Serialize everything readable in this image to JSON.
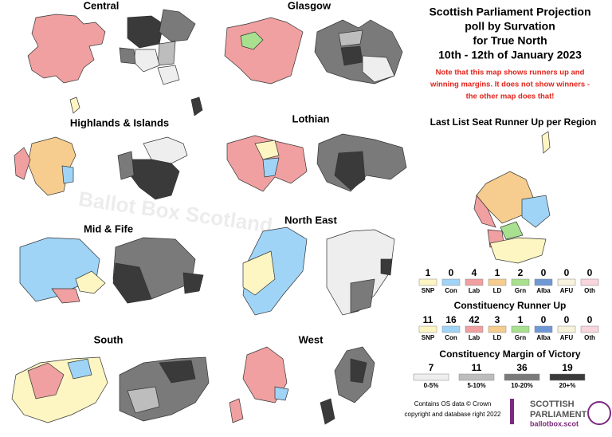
{
  "title": [
    "Scottish Parliament Projection",
    "poll by Survation",
    "for True North",
    "10th - 12th of January 2023"
  ],
  "note": [
    "Note that this map shows runners up and",
    "winning margins. It does not show winners -",
    "the other map does that!"
  ],
  "watermark": "Ballot Box Scotland",
  "regions": [
    "Central",
    "Glasgow",
    "Highlands & Islands",
    "Lothian",
    "Mid & Fife",
    "North East",
    "South",
    "West"
  ],
  "list_runner_up": {
    "title": "Last List Seat Runner Up per Region",
    "items": [
      {
        "party": "SNP",
        "count": 1,
        "color": "#fdf6c2"
      },
      {
        "party": "Con",
        "count": 0,
        "color": "#9fd4f7"
      },
      {
        "party": "Lab",
        "count": 4,
        "color": "#f0a0a0"
      },
      {
        "party": "LD",
        "count": 1,
        "color": "#f6cd8e"
      },
      {
        "party": "Grn",
        "count": 2,
        "color": "#a8e08f"
      },
      {
        "party": "Alba",
        "count": 0,
        "color": "#6f98d6"
      },
      {
        "party": "AFU",
        "count": 0,
        "color": "#f7f2dc"
      },
      {
        "party": "Oth",
        "count": 0,
        "color": "#f9d5dd"
      }
    ]
  },
  "constituency_runner_up": {
    "title": "Constituency Runner Up",
    "items": [
      {
        "party": "SNP",
        "count": 11,
        "color": "#fdf6c2"
      },
      {
        "party": "Con",
        "count": 16,
        "color": "#9fd4f7"
      },
      {
        "party": "Lab",
        "count": 42,
        "color": "#f0a0a0"
      },
      {
        "party": "LD",
        "count": 3,
        "color": "#f6cd8e"
      },
      {
        "party": "Grn",
        "count": 1,
        "color": "#a8e08f"
      },
      {
        "party": "Alba",
        "count": 0,
        "color": "#6f98d6"
      },
      {
        "party": "AFU",
        "count": 0,
        "color": "#f7f2dc"
      },
      {
        "party": "Oth",
        "count": 0,
        "color": "#f9d5dd"
      }
    ]
  },
  "margin": {
    "title": "Constituency Margin of Victory",
    "items": [
      {
        "range": "0-5%",
        "count": 7,
        "color": "#eeeeee"
      },
      {
        "range": "5-10%",
        "count": 11,
        "color": "#bdbdbd"
      },
      {
        "range": "10-20%",
        "count": 36,
        "color": "#7a7a7a"
      },
      {
        "range": "20+%",
        "count": 19,
        "color": "#3a3a3a"
      }
    ]
  },
  "footer": [
    "Contains OS data © Crown",
    "copyright and database right 2022"
  ],
  "logo": {
    "line1": "SCOTTISH",
    "line2": "PARLIAMENT",
    "url": "ballotbox.scot"
  }
}
